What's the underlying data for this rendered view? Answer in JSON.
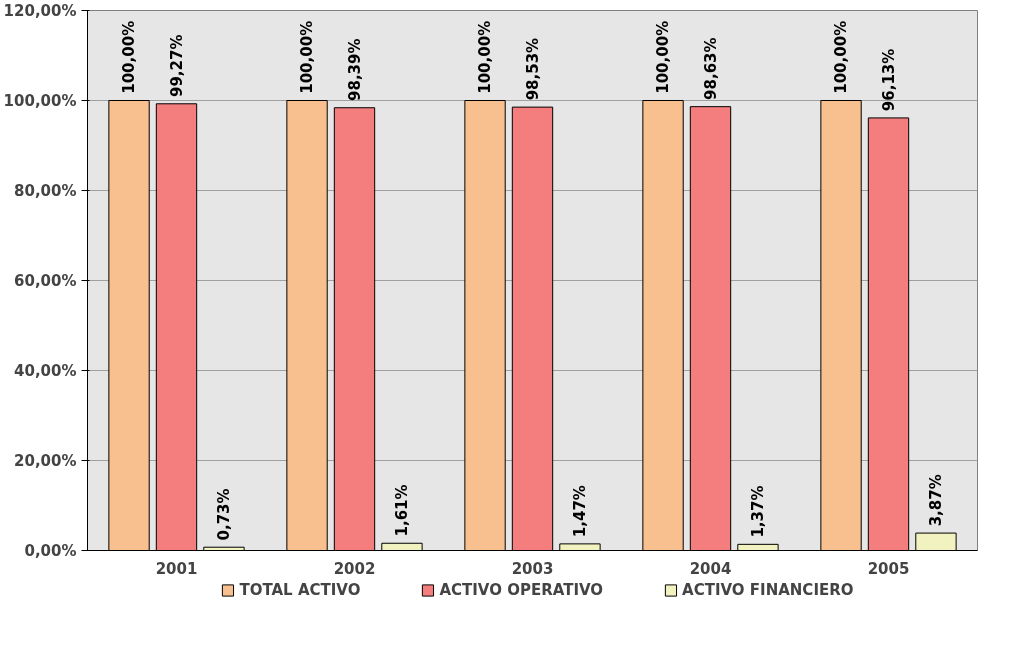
{
  "chart_data": {
    "type": "bar",
    "categories": [
      "2001",
      "2002",
      "2003",
      "2004",
      "2005"
    ],
    "series": [
      {
        "name": "TOTAL ACTIVO",
        "color": "#f9c08f",
        "values": [
          100,
          100,
          100,
          100,
          100
        ],
        "value_labels": [
          "100,00%",
          "100,00%",
          "100,00%",
          "100,00%",
          "100,00%"
        ]
      },
      {
        "name": "ACTIVO OPERATIVO",
        "color": "#f47e7e",
        "values": [
          99.27,
          98.39,
          98.53,
          98.63,
          96.13
        ],
        "value_labels": [
          "99,27%",
          "98,39%",
          "98,53%",
          "98,63%",
          "96,13%"
        ]
      },
      {
        "name": "ACTIVO FINANCIERO",
        "color": "#f2f2c0",
        "values": [
          0.73,
          1.61,
          1.47,
          1.37,
          3.87
        ],
        "value_labels": [
          "0,73%",
          "1,61%",
          "1,47%",
          "1,37%",
          "3,87%"
        ]
      }
    ],
    "ylim": [
      0,
      120
    ],
    "yticks": [
      {
        "value": 0,
        "label": "0,00%"
      },
      {
        "value": 20,
        "label": "20,00%"
      },
      {
        "value": 40,
        "label": "40,00%"
      },
      {
        "value": 60,
        "label": "60,00%"
      },
      {
        "value": 80,
        "label": "80,00%"
      },
      {
        "value": 100,
        "label": "100,00%"
      },
      {
        "value": 120,
        "label": "120,00%"
      }
    ],
    "grid": "y",
    "legend": "bottom"
  }
}
